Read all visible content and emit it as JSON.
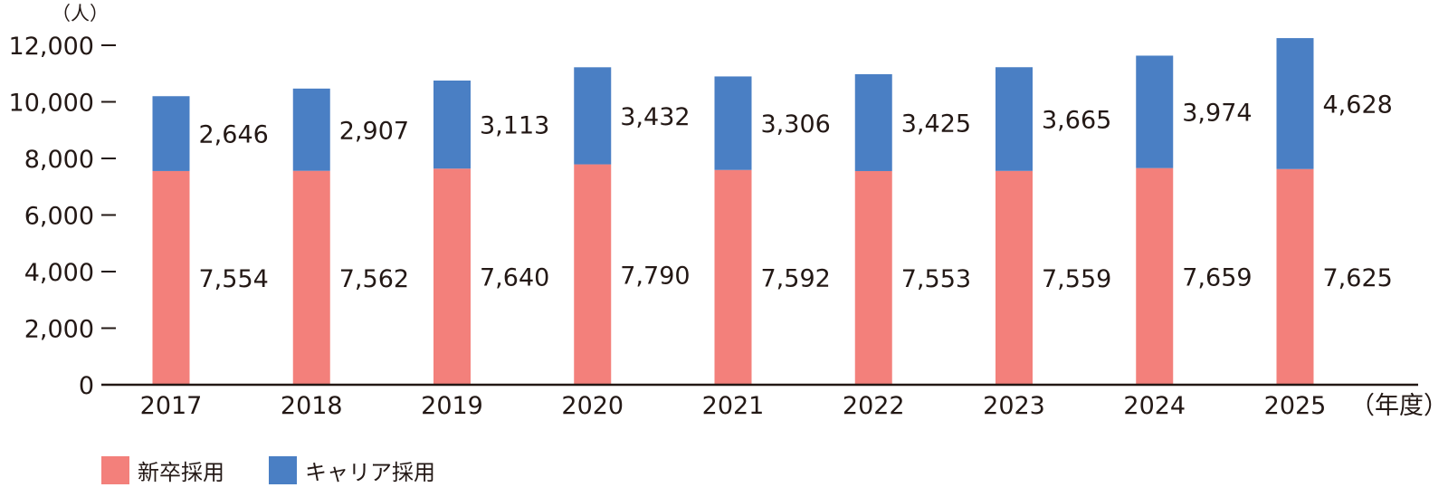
{
  "chart_data": {
    "type": "bar",
    "stacked": true,
    "y_unit": "（人）",
    "x_unit": "（年度）",
    "categories": [
      "2017",
      "2018",
      "2019",
      "2020",
      "2021",
      "2022",
      "2023",
      "2024",
      "2025"
    ],
    "series": [
      {
        "name": "新卒採用",
        "color": "#f3807b",
        "values": [
          7554,
          7562,
          7640,
          7790,
          7592,
          7553,
          7559,
          7659,
          7625
        ],
        "labels": [
          "7,554",
          "7,562",
          "7,640",
          "7,790",
          "7,592",
          "7,553",
          "7,559",
          "7,659",
          "7,625"
        ]
      },
      {
        "name": "キャリア採用",
        "color": "#4a7fc4",
        "values": [
          2646,
          2907,
          3113,
          3432,
          3306,
          3425,
          3665,
          3974,
          4628
        ],
        "labels": [
          "2,646",
          "2,907",
          "3,113",
          "3,432",
          "3,306",
          "3,425",
          "3,665",
          "3,974",
          "4,628"
        ]
      }
    ],
    "yticks": [
      0,
      2000,
      4000,
      6000,
      8000,
      10000,
      12000
    ],
    "ytick_labels": [
      "0",
      "2,000",
      "4,000",
      "6,000",
      "8,000",
      "10,000",
      "12,000"
    ],
    "ylim": [
      0,
      12000
    ],
    "grid": false,
    "legend": "bottom-left"
  }
}
